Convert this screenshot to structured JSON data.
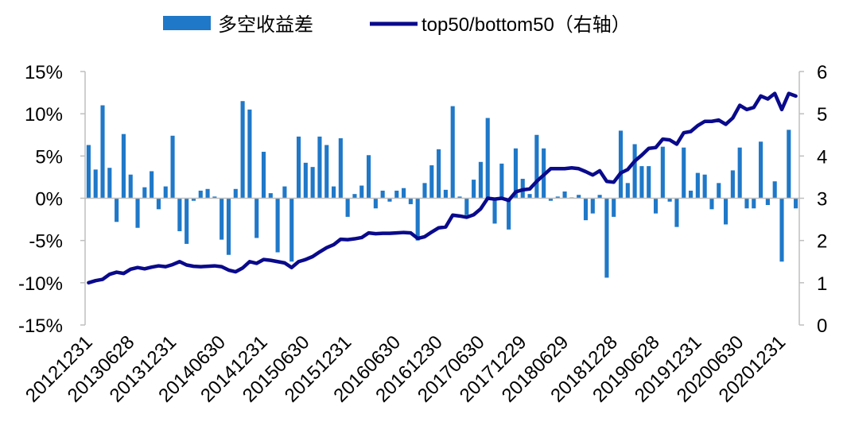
{
  "chart_data": {
    "type": "bar+line",
    "legend": {
      "placement": "top-center",
      "items": [
        {
          "label": "多空收益差",
          "kind": "bar",
          "color": "#1f78c8"
        },
        {
          "label": "top50/bottom50（右轴）",
          "kind": "line",
          "color": "#0a0a8c"
        }
      ]
    },
    "x_tick_labels": [
      "20121231",
      "20130628",
      "20131231",
      "20140630",
      "20141231",
      "20150630",
      "20151231",
      "20160630",
      "20161230",
      "20170630",
      "20171229",
      "20180629",
      "20181228",
      "20190628",
      "20191231",
      "20200630",
      "20201231"
    ],
    "y_left": {
      "ticks": [
        "15%",
        "10%",
        "5%",
        "0%",
        "-5%",
        "-10%",
        "-15%"
      ],
      "min": -15,
      "max": 15
    },
    "y_right": {
      "ticks": [
        "6",
        "5",
        "4",
        "3",
        "2",
        "1",
        "0"
      ],
      "min": 0,
      "max": 6
    },
    "bar_color": "#1f78c8",
    "line_color": "#0a0a8c",
    "bars": [
      6.3,
      3.4,
      11,
      3.6,
      -2.8,
      7.6,
      2.8,
      -3.5,
      1.3,
      3.2,
      -1.3,
      1.4,
      7.4,
      -3.9,
      -5.4,
      -0.3,
      0.9,
      1.1,
      0.2,
      -4.9,
      -6.7,
      1.1,
      11.5,
      10.5,
      -4.7,
      5.5,
      0.6,
      -6.4,
      1.4,
      -7.5,
      7.3,
      4.2,
      3.7,
      7.3,
      6.3,
      1.4,
      7.1,
      -2.2,
      0.5,
      1.5,
      5.1,
      -1.2,
      0.9,
      -0.4,
      0.9,
      1.2,
      -0.7,
      -5,
      1.8,
      3.9,
      5.8,
      1,
      10.9,
      0.2,
      -2,
      2.2,
      4.3,
      9.5,
      -3,
      4.1,
      -3.7,
      5.9,
      2.3,
      0.5,
      7.5,
      5.9,
      -0.3,
      0.2,
      0.8,
      0.1,
      0.4,
      -2.6,
      -1.8,
      0.4,
      -9.4,
      -2.2,
      8,
      1.8,
      6.4,
      3.8,
      3.8,
      -1.8,
      6.1,
      -0.4,
      -3.4,
      6,
      0.9,
      3,
      2.8,
      -1.3,
      1.8,
      -3.1,
      3.3,
      6,
      -1.2,
      -1.2,
      6.7,
      -0.8,
      2,
      -7.5,
      8.1,
      -1.2
    ],
    "line": [
      1.0,
      1.05,
      1.08,
      1.2,
      1.25,
      1.22,
      1.32,
      1.36,
      1.33,
      1.37,
      1.4,
      1.38,
      1.43,
      1.5,
      1.42,
      1.39,
      1.38,
      1.39,
      1.4,
      1.38,
      1.3,
      1.26,
      1.35,
      1.5,
      1.46,
      1.55,
      1.53,
      1.5,
      1.47,
      1.36,
      1.5,
      1.55,
      1.62,
      1.73,
      1.83,
      1.9,
      2.03,
      2.02,
      2.04,
      2.07,
      2.18,
      2.16,
      2.17,
      2.17,
      2.18,
      2.19,
      2.18,
      2.05,
      2.09,
      2.2,
      2.3,
      2.32,
      2.6,
      2.58,
      2.55,
      2.61,
      2.75,
      3.0,
      2.98,
      3.0,
      2.95,
      3.15,
      3.2,
      3.22,
      3.4,
      3.55,
      3.7,
      3.7,
      3.7,
      3.72,
      3.7,
      3.63,
      3.55,
      3.65,
      3.4,
      3.38,
      3.6,
      3.68,
      3.88,
      4.02,
      4.18,
      4.2,
      4.4,
      4.38,
      4.28,
      4.55,
      4.58,
      4.72,
      4.82,
      4.82,
      4.85,
      4.75,
      4.9,
      5.2,
      5.1,
      5.15,
      5.42,
      5.35,
      5.48,
      5.1,
      5.48,
      5.42
    ]
  }
}
